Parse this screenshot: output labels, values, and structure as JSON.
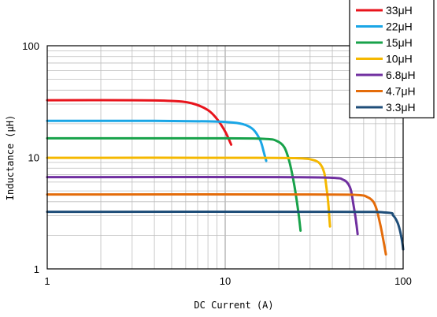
{
  "chart_data": {
    "type": "line",
    "xlabel": "DC Current (A)",
    "ylabel": "Inductance (μH)",
    "x_scale": "log",
    "y_scale": "log",
    "xlim": [
      1,
      100
    ],
    "ylim": [
      1,
      100
    ],
    "x_ticks": [
      "1",
      "10",
      "100"
    ],
    "y_ticks": [
      "1",
      "10",
      "100"
    ],
    "grid": true,
    "legend_position": "top-right",
    "series": [
      {
        "name": "33μH",
        "color": "#e8141c",
        "points": [
          [
            1,
            32.5
          ],
          [
            3,
            32.5
          ],
          [
            5,
            32.0
          ],
          [
            6.5,
            30.5
          ],
          [
            8,
            26.5
          ],
          [
            9,
            22
          ],
          [
            10,
            17
          ],
          [
            10.8,
            13.0
          ]
        ]
      },
      {
        "name": "22μH",
        "color": "#1aa6e6",
        "points": [
          [
            1,
            21.2
          ],
          [
            4,
            21.2
          ],
          [
            8,
            21.0
          ],
          [
            11,
            20.5
          ],
          [
            13,
            19.5
          ],
          [
            14.5,
            17.5
          ],
          [
            15.8,
            14
          ],
          [
            16.5,
            11
          ],
          [
            17,
            9.3
          ]
        ]
      },
      {
        "name": "15μH",
        "color": "#18a24a",
        "points": [
          [
            1,
            14.8
          ],
          [
            10,
            14.8
          ],
          [
            17,
            14.6
          ],
          [
            19.5,
            14.0
          ],
          [
            21.5,
            12.3
          ],
          [
            23,
            9.0
          ],
          [
            24.5,
            5.5
          ],
          [
            25.8,
            3.2
          ],
          [
            26.5,
            2.2
          ]
        ]
      },
      {
        "name": "10μH",
        "color": "#f5b800",
        "points": [
          [
            1,
            9.9
          ],
          [
            15,
            9.9
          ],
          [
            26,
            9.8
          ],
          [
            31,
            9.5
          ],
          [
            34,
            8.8
          ],
          [
            36,
            7.3
          ],
          [
            37,
            5.5
          ],
          [
            38,
            3.8
          ],
          [
            38.8,
            2.4
          ]
        ]
      },
      {
        "name": "6.8μH",
        "color": "#7030a0",
        "points": [
          [
            1,
            6.65
          ],
          [
            20,
            6.65
          ],
          [
            40,
            6.55
          ],
          [
            46,
            6.3
          ],
          [
            49,
            5.8
          ],
          [
            51,
            5.0
          ],
          [
            52.5,
            3.8
          ],
          [
            54,
            2.9
          ],
          [
            55.5,
            2.05
          ]
        ]
      },
      {
        "name": "4.7μH",
        "color": "#e46c0a",
        "points": [
          [
            1,
            4.65
          ],
          [
            30,
            4.65
          ],
          [
            55,
            4.6
          ],
          [
            63,
            4.4
          ],
          [
            68,
            4.0
          ],
          [
            71,
            3.4
          ],
          [
            74,
            2.6
          ],
          [
            77,
            1.9
          ],
          [
            80,
            1.35
          ]
        ]
      },
      {
        "name": "3.3μH",
        "color": "#1f4e79",
        "points": [
          [
            1,
            3.25
          ],
          [
            40,
            3.25
          ],
          [
            80,
            3.2
          ],
          [
            88,
            3.0
          ],
          [
            93,
            2.6
          ],
          [
            96,
            2.2
          ],
          [
            98.5,
            1.8
          ],
          [
            100,
            1.5
          ]
        ]
      }
    ]
  }
}
